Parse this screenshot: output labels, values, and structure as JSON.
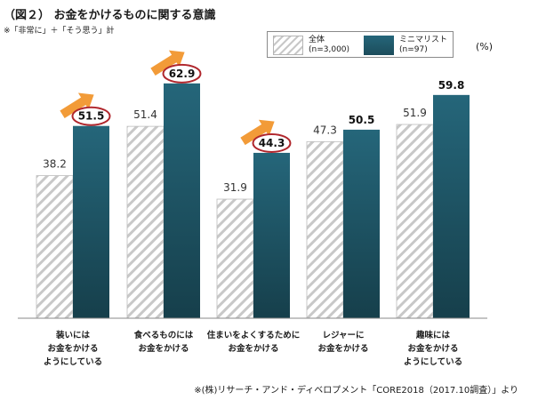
{
  "title": "（図２） お金をかけるものに関する意識",
  "note": "※「非常に」＋「そう思う」計",
  "unit": "(%)",
  "source": "※(株)リサーチ・アンド・ディベロプメント「CORE2018（2017.10調査）」より",
  "colors": {
    "minimalist_top": "#25667a",
    "minimalist_bottom": "#163f4b",
    "hatch": "#c8c8c8",
    "circle": "#b0262c",
    "arrow": "#f29b38"
  },
  "chart_data": {
    "type": "bar",
    "categories": [
      "装いには\nお金をかける\nようにしている",
      "食べるものには\nお金をかける",
      "住まいをよくするために\nお金をかける",
      "レジャーに\nお金をかける",
      "趣味には\nお金をかける\nようにしている"
    ],
    "series": [
      {
        "name": "全体\n(n=3,000)",
        "values": [
          38.2,
          51.4,
          31.9,
          47.3,
          51.9
        ]
      },
      {
        "name": "ミニマリスト\n(n=97)",
        "values": [
          51.5,
          62.9,
          44.3,
          50.5,
          59.8
        ]
      }
    ],
    "highlighted": [
      true,
      true,
      true,
      false,
      false
    ],
    "ylim": [
      0,
      75
    ],
    "grid": false,
    "legend": "top-right"
  }
}
